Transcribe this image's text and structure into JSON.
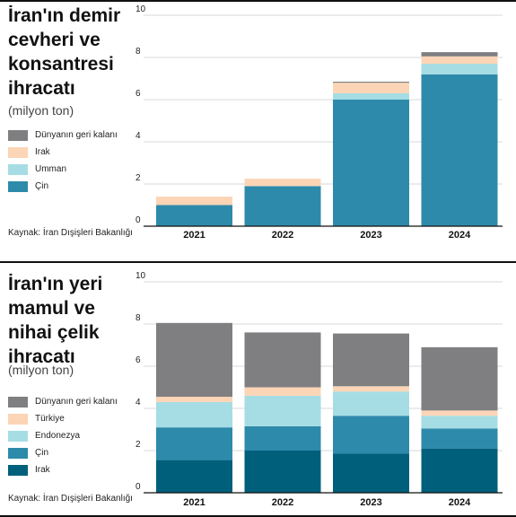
{
  "chart_data": [
    {
      "type": "bar",
      "stacked": true,
      "title": "İran'ın demir cevheri ve konsantresi ihracatı",
      "subtitle": "(milyon ton)",
      "categories": [
        "2021",
        "2022",
        "2023",
        "2024"
      ],
      "ylim": [
        0,
        10
      ],
      "yticks": [
        "0",
        "2",
        "4",
        "6",
        "8",
        "10"
      ],
      "series": [
        {
          "name": "Çin",
          "color": "#2e8aab",
          "values": [
            1.0,
            1.9,
            6.0,
            7.2
          ]
        },
        {
          "name": "Umman",
          "color": "#a6dde4",
          "values": [
            0.0,
            0.0,
            0.3,
            0.5
          ]
        },
        {
          "name": "Irak",
          "color": "#fbd5b6",
          "values": [
            0.4,
            0.35,
            0.5,
            0.35
          ]
        },
        {
          "name": "Dünyanın geri kalanı",
          "color": "#7f7f81",
          "values": [
            0.0,
            0.0,
            0.05,
            0.2
          ]
        }
      ],
      "source": "Kaynak: İran Dışişleri Bakanlığı"
    },
    {
      "type": "bar",
      "stacked": true,
      "title": "İran'ın yeri mamul ve nihai çelik ihracatı",
      "subtitle": "(milyon ton)",
      "categories": [
        "2021",
        "2022",
        "2023",
        "2024"
      ],
      "ylim": [
        0,
        10
      ],
      "yticks": [
        "0",
        "2",
        "4",
        "6",
        "8",
        "10"
      ],
      "series": [
        {
          "name": "Irak",
          "color": "#005f7a",
          "values": [
            1.55,
            2.0,
            1.85,
            2.1
          ]
        },
        {
          "name": "Çin",
          "color": "#2e8aab",
          "values": [
            1.55,
            1.15,
            1.8,
            0.95
          ]
        },
        {
          "name": "Endonezya",
          "color": "#a6dde4",
          "values": [
            1.2,
            1.45,
            1.15,
            0.6
          ]
        },
        {
          "name": "Türkiye",
          "color": "#fbd5b6",
          "values": [
            0.25,
            0.4,
            0.25,
            0.25
          ]
        },
        {
          "name": "Dünyanın geri kalanı",
          "color": "#7f7f81",
          "values": [
            3.5,
            2.6,
            2.5,
            3.0
          ]
        }
      ],
      "source": "Kaynak: İran Dışişleri Bakanlığı"
    }
  ]
}
